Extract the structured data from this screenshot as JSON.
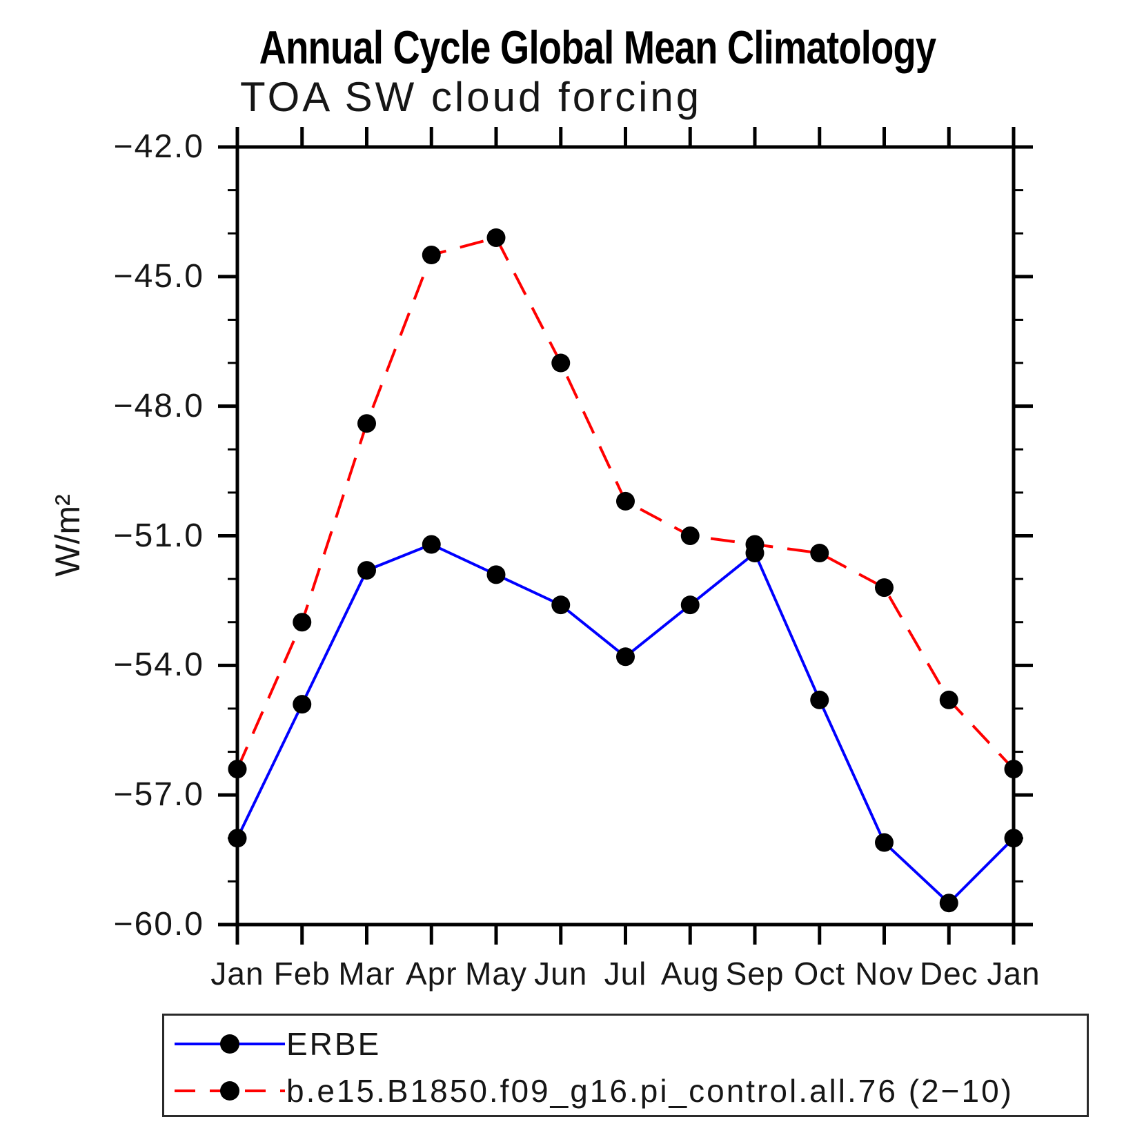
{
  "chart_data": {
    "type": "line",
    "title": "Annual Cycle Global Mean Climatology",
    "subtitle": "TOA SW cloud forcing",
    "ylabel": "W/m²",
    "xlabel": "",
    "categories": [
      "Jan",
      "Feb",
      "Mar",
      "Apr",
      "May",
      "Jun",
      "Jul",
      "Aug",
      "Sep",
      "Oct",
      "Nov",
      "Dec",
      "Jan"
    ],
    "series": [
      {
        "name": "ERBE",
        "color": "#0000ff",
        "line_style": "solid",
        "marker": "filled-circle",
        "marker_color": "#000000",
        "values": [
          -58.0,
          -54.9,
          -51.8,
          -51.2,
          -51.9,
          -52.6,
          -53.8,
          -52.6,
          -51.4,
          -54.8,
          -58.1,
          -59.5,
          -58.0
        ]
      },
      {
        "name": "b.e15.B1850.f09_g16.pi_control.all.76 (2−10)",
        "color": "#ff0000",
        "line_style": "dashed",
        "marker": "filled-circle",
        "marker_color": "#000000",
        "values": [
          -56.4,
          -53.0,
          -48.4,
          -44.5,
          -44.1,
          -47.0,
          -50.2,
          -51.0,
          -51.2,
          -51.4,
          -52.2,
          -54.8,
          -56.4
        ]
      }
    ],
    "ylim": [
      -60.0,
      -42.0
    ],
    "yticks": [
      -42,
      -45,
      -48,
      -51,
      -54,
      -57,
      -60
    ],
    "ytick_labels": [
      "−42.0",
      "−45.0",
      "−48.0",
      "−51.0",
      "−54.0",
      "−57.0",
      "−60.0"
    ],
    "minor_tick_interval": 1,
    "grid": false,
    "axis_color": "#000000",
    "background_color": "#ffffff",
    "legend_position": "bottom-left-box",
    "tick_style": "outward-all-four-sides"
  }
}
